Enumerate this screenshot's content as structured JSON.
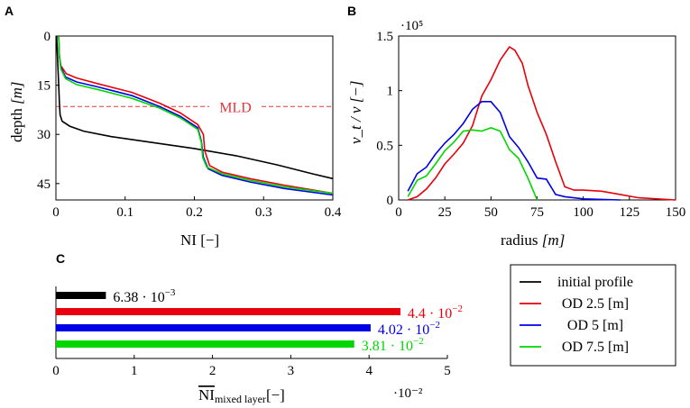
{
  "chart_data": [
    {
      "panel": "A",
      "type": "line",
      "title": "",
      "xlabel": "NI",
      "xlabel_unit": "[−]",
      "ylabel": "depth",
      "ylabel_unit": "[m]",
      "xlim": [
        0,
        0.4
      ],
      "ylim": [
        0,
        50
      ],
      "y_inverted": true,
      "xticks": [
        "0",
        "0.1",
        "0.2",
        "0.3",
        "0.4"
      ],
      "xtick_values": [
        0,
        0.1,
        0.2,
        0.3,
        0.4
      ],
      "yticks": [
        "0",
        "15",
        "30",
        "45"
      ],
      "ytick_values": [
        0,
        15,
        30,
        45
      ],
      "annotation": {
        "text": "MLD",
        "depth": 21.5,
        "color": "#e8333a"
      },
      "series": [
        {
          "name": "initial profile",
          "color": "#000000",
          "points": [
            [
              0.001,
              0
            ],
            [
              0.002,
              5
            ],
            [
              0.003,
              10
            ],
            [
              0.004,
              15
            ],
            [
              0.005,
              20
            ],
            [
              0.006,
              24
            ],
            [
              0.009,
              26
            ],
            [
              0.02,
              27.5
            ],
            [
              0.04,
              29
            ],
            [
              0.08,
              30.7
            ],
            [
              0.14,
              32.5
            ],
            [
              0.2,
              34.3
            ],
            [
              0.26,
              36.5
            ],
            [
              0.32,
              39.3
            ],
            [
              0.37,
              42
            ],
            [
              0.4,
              43.5
            ]
          ]
        },
        {
          "name": "OD 2.5 [m]",
          "color": "#e8000b",
          "points": [
            [
              0.004,
              0
            ],
            [
              0.005,
              6
            ],
            [
              0.007,
              9
            ],
            [
              0.015,
              11.5
            ],
            [
              0.03,
              12.8
            ],
            [
              0.06,
              14.5
            ],
            [
              0.11,
              17.2
            ],
            [
              0.15,
              20.5
            ],
            [
              0.18,
              23.5
            ],
            [
              0.205,
              27
            ],
            [
              0.213,
              30
            ],
            [
              0.215,
              35
            ],
            [
              0.222,
              39.5
            ],
            [
              0.24,
              41.5
            ],
            [
              0.28,
              43.5
            ],
            [
              0.33,
              45.5
            ],
            [
              0.4,
              48
            ]
          ]
        },
        {
          "name": "OD 5 [m]",
          "color": "#0000e6",
          "points": [
            [
              0.004,
              0
            ],
            [
              0.005,
              6
            ],
            [
              0.007,
              9.5
            ],
            [
              0.014,
              12.5
            ],
            [
              0.03,
              14
            ],
            [
              0.06,
              15.5
            ],
            [
              0.11,
              18.2
            ],
            [
              0.15,
              21.5
            ],
            [
              0.18,
              24.5
            ],
            [
              0.205,
              28
            ],
            [
              0.21,
              32
            ],
            [
              0.213,
              37
            ],
            [
              0.22,
              40.5
            ],
            [
              0.24,
              42.5
            ],
            [
              0.28,
              44.5
            ],
            [
              0.33,
              46.5
            ],
            [
              0.4,
              48.5
            ]
          ]
        },
        {
          "name": "OD 7.5 [m]",
          "color": "#00d600",
          "points": [
            [
              0.004,
              0
            ],
            [
              0.005,
              6
            ],
            [
              0.007,
              10
            ],
            [
              0.014,
              13
            ],
            [
              0.03,
              14.8
            ],
            [
              0.06,
              16.3
            ],
            [
              0.11,
              19
            ],
            [
              0.15,
              22
            ],
            [
              0.18,
              25
            ],
            [
              0.205,
              28.5
            ],
            [
              0.21,
              32.5
            ],
            [
              0.212,
              37
            ],
            [
              0.218,
              40
            ],
            [
              0.24,
              42
            ],
            [
              0.28,
              44
            ],
            [
              0.33,
              46
            ],
            [
              0.4,
              48
            ]
          ]
        }
      ]
    },
    {
      "panel": "B",
      "type": "line",
      "title": "",
      "xlabel": "radius",
      "xlabel_unit": "[m]",
      "ylabel": "ν_t / ν [−]",
      "ylabel_unit": "[−]",
      "xlim": [
        0,
        150
      ],
      "ylim": [
        0,
        1.5
      ],
      "y_scale_label": "·10⁵",
      "xticks": [
        "0",
        "25",
        "50",
        "75",
        "100",
        "125",
        "150"
      ],
      "xtick_values": [
        0,
        25,
        50,
        75,
        100,
        125,
        150
      ],
      "yticks": [
        "0",
        "0.5",
        "1",
        "1.5"
      ],
      "ytick_values": [
        0,
        0.5,
        1,
        1.5
      ],
      "series": [
        {
          "name": "OD 2.5 [m]",
          "color": "#e8000b",
          "points": [
            [
              5,
              0
            ],
            [
              10,
              0.03
            ],
            [
              15,
              0.1
            ],
            [
              20,
              0.2
            ],
            [
              25,
              0.33
            ],
            [
              30,
              0.42
            ],
            [
              35,
              0.52
            ],
            [
              40,
              0.68
            ],
            [
              45,
              0.95
            ],
            [
              50,
              1.1
            ],
            [
              55,
              1.28
            ],
            [
              60,
              1.4
            ],
            [
              63,
              1.37
            ],
            [
              67,
              1.25
            ],
            [
              70,
              1.05
            ],
            [
              75,
              0.8
            ],
            [
              80,
              0.6
            ],
            [
              85,
              0.35
            ],
            [
              90,
              0.12
            ],
            [
              95,
              0.09
            ],
            [
              100,
              0.09
            ],
            [
              110,
              0.08
            ],
            [
              120,
              0.05
            ],
            [
              130,
              0.02
            ],
            [
              140,
              0.01
            ],
            [
              150,
              0
            ]
          ]
        },
        {
          "name": "OD 5 [m]",
          "color": "#0000e6",
          "points": [
            [
              5,
              0.08
            ],
            [
              10,
              0.24
            ],
            [
              15,
              0.3
            ],
            [
              20,
              0.42
            ],
            [
              25,
              0.52
            ],
            [
              30,
              0.6
            ],
            [
              35,
              0.7
            ],
            [
              40,
              0.83
            ],
            [
              45,
              0.9
            ],
            [
              50,
              0.9
            ],
            [
              55,
              0.8
            ],
            [
              60,
              0.58
            ],
            [
              65,
              0.48
            ],
            [
              70,
              0.35
            ],
            [
              75,
              0.2
            ],
            [
              80,
              0.19
            ],
            [
              85,
              0.05
            ],
            [
              90,
              0.03
            ],
            [
              100,
              0.01
            ],
            [
              120,
              0
            ]
          ]
        },
        {
          "name": "OD 7.5 [m]",
          "color": "#00d600",
          "points": [
            [
              5,
              0.03
            ],
            [
              10,
              0.18
            ],
            [
              15,
              0.22
            ],
            [
              20,
              0.33
            ],
            [
              25,
              0.45
            ],
            [
              30,
              0.53
            ],
            [
              35,
              0.63
            ],
            [
              40,
              0.64
            ],
            [
              45,
              0.63
            ],
            [
              50,
              0.66
            ],
            [
              55,
              0.63
            ],
            [
              60,
              0.46
            ],
            [
              65,
              0.38
            ],
            [
              70,
              0.2
            ],
            [
              75,
              0
            ]
          ]
        }
      ]
    },
    {
      "panel": "C",
      "type": "bar",
      "orientation": "horizontal",
      "xlabel": "NI",
      "xlabel_subscript": "mixed layer",
      "xlabel_unit": "[−]",
      "x_scale_label": "·10⁻²",
      "xlim": [
        0,
        5
      ],
      "xticks": [
        "0",
        "1",
        "2",
        "3",
        "4",
        "5"
      ],
      "xtick_values": [
        0,
        1,
        2,
        3,
        4,
        5
      ],
      "categories": [
        "initial profile",
        "OD 2.5 [m]",
        "OD 5 [m]",
        "OD 7.5 [m]"
      ],
      "values": [
        0.638,
        4.4,
        4.02,
        3.81
      ],
      "value_labels": [
        {
          "mantissa": "6.38 · 10",
          "exponent": "−3"
        },
        {
          "mantissa": "4.4 · 10",
          "exponent": "−2"
        },
        {
          "mantissa": "4.02 · 10",
          "exponent": "−2"
        },
        {
          "mantissa": "3.81 · 10",
          "exponent": "−2"
        }
      ],
      "colors": [
        "#000000",
        "#e8000b",
        "#0000e6",
        "#00d600"
      ]
    }
  ],
  "legend": {
    "placement": "bottom-right",
    "entries": [
      {
        "label": "initial profile",
        "color": "#000000"
      },
      {
        "label": "OD 2.5 [m]",
        "color": "#e8000b"
      },
      {
        "label": "OD 5 [m]",
        "color": "#0000e6"
      },
      {
        "label": "OD 7.5 [m]",
        "color": "#00d600"
      }
    ]
  },
  "panel_labels": [
    "A",
    "B",
    "C"
  ]
}
